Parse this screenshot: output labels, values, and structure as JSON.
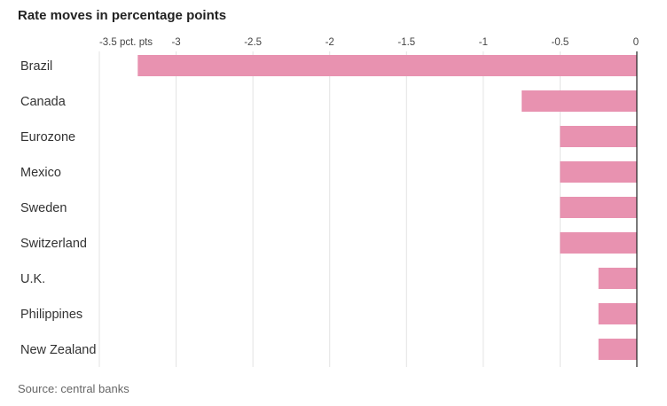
{
  "title": "Rate moves in percentage points",
  "source": "Source: central banks",
  "chart_data": {
    "type": "bar",
    "orientation": "horizontal",
    "title": "Rate moves in percentage points",
    "categories": [
      "Brazil",
      "Canada",
      "Eurozone",
      "Mexico",
      "Sweden",
      "Switzerland",
      "U.K.",
      "Philippines",
      "New Zealand"
    ],
    "values": [
      -3.25,
      -0.75,
      -0.5,
      -0.5,
      -0.5,
      -0.5,
      -0.25,
      -0.25,
      -0.25
    ],
    "xlim": [
      -3.5,
      0
    ],
    "ticks": [
      {
        "value": -3.5,
        "label": "-3.5 pct. pts"
      },
      {
        "value": -3,
        "label": "-3"
      },
      {
        "value": -2.5,
        "label": "-2.5"
      },
      {
        "value": -2,
        "label": "-2"
      },
      {
        "value": -1.5,
        "label": "-1.5"
      },
      {
        "value": -1,
        "label": "-1"
      },
      {
        "value": -0.5,
        "label": "-0.5"
      },
      {
        "value": 0,
        "label": "0"
      }
    ],
    "bar_color": "#e892b0",
    "grid": true
  }
}
